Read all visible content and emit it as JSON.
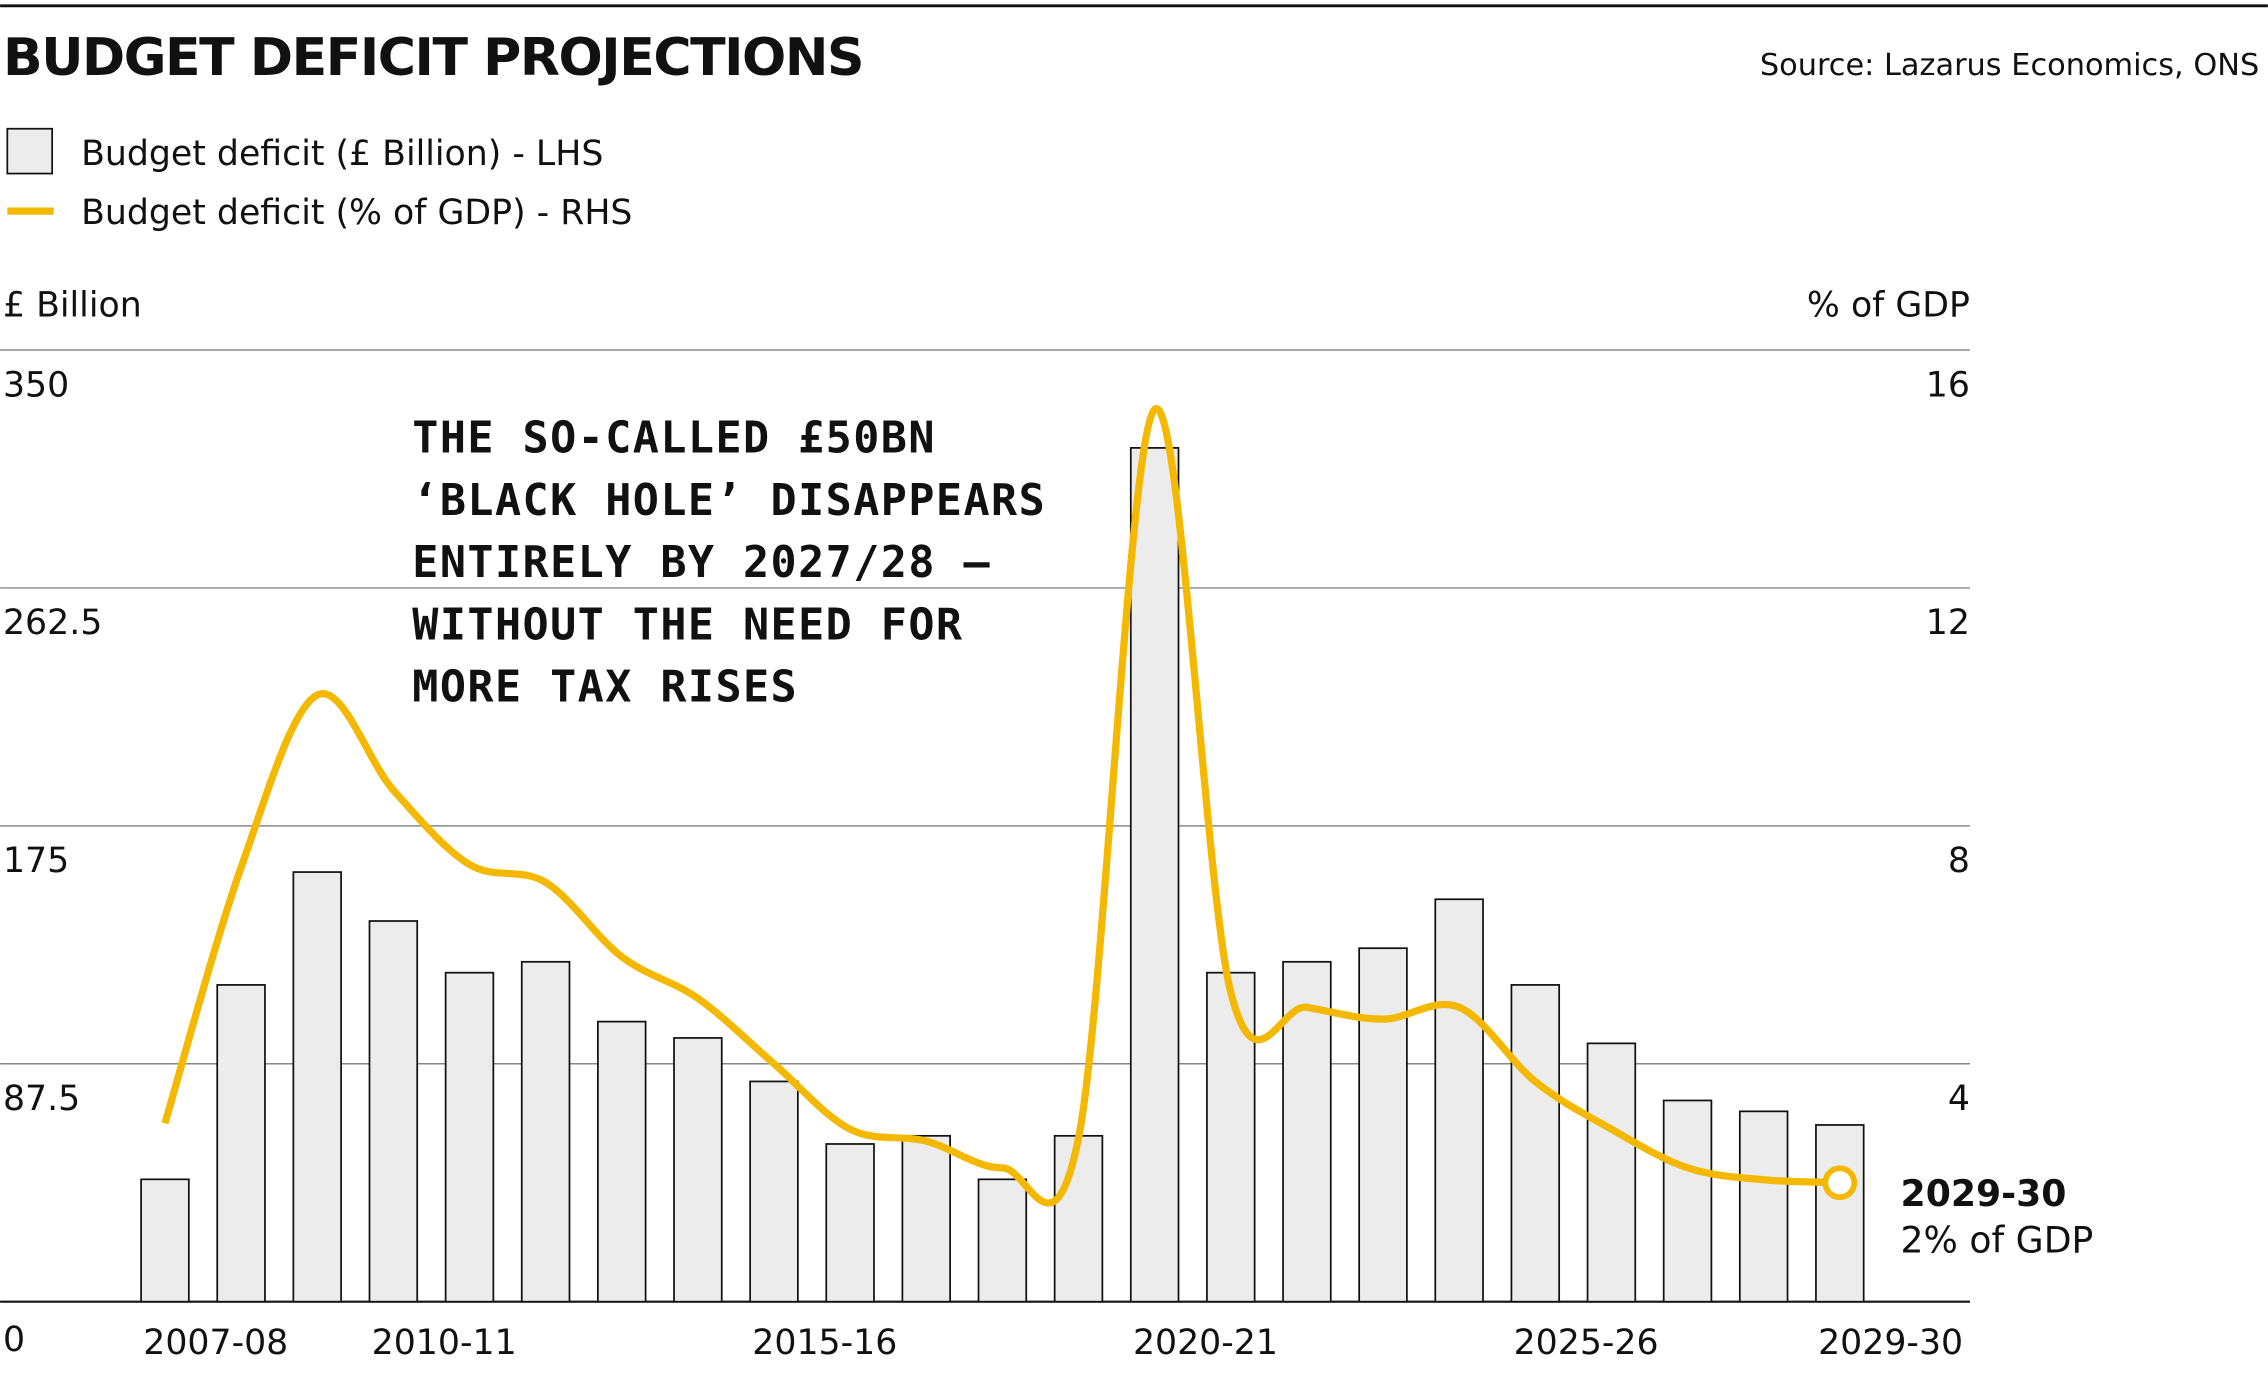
{
  "chart_data": {
    "type": "bar-line",
    "title": "BUDGET DEFICIT PROJECTIONS",
    "source": "Source: Lazarus Economics, ONS",
    "y_label": "£ Billion",
    "y2_label": "% of GDP",
    "categories": [
      "2007-08",
      null,
      null,
      "2010-11",
      null,
      null,
      null,
      null,
      "2015-16",
      null,
      null,
      null,
      null,
      "2020-21",
      null,
      null,
      null,
      null,
      "2025-26",
      null,
      null,
      null,
      "2029-30"
    ],
    "series": [
      {
        "name": "Budget deficit (£ Billion) - LHS",
        "type": "bar",
        "color": "#ececec",
        "values": [
          45,
          116.5,
          158,
          140,
          121,
          125,
          103,
          97,
          81,
          58,
          61,
          45,
          61,
          314,
          121,
          125,
          130,
          148,
          116.5,
          95,
          74,
          70,
          65
        ]
      },
      {
        "name": "Budget deficit (% of GDP) - RHS",
        "type": "line",
        "axis": "y2",
        "color": "#f5b800",
        "values": [
          3.0,
          7.3,
          10.2,
          8.6,
          7.35,
          7.05,
          5.8,
          5.1,
          4.0,
          2.9,
          2.7,
          2.25,
          2.75,
          15.0,
          5.2,
          4.95,
          4.75,
          4.95,
          3.7,
          2.9,
          2.25,
          2.05,
          2
        ]
      }
    ],
    "ylim": [
      0,
      350
    ],
    "yticks": [
      0,
      87.5,
      175,
      262.5,
      350
    ],
    "y2lim": [
      0,
      16
    ],
    "y2ticks": [
      0,
      4,
      8,
      12,
      16
    ],
    "grid": true,
    "annotation": [
      "THE SO-CALLED £50BN",
      "‘BLACK HOLE’ DISAPPEARS",
      "ENTIRELY BY 2027/28 —",
      "WITHOUT THE NEED FOR",
      "MORE TAX RISES"
    ],
    "end_label": {
      "title": "2029-30",
      "text": "2% of GDP"
    }
  }
}
